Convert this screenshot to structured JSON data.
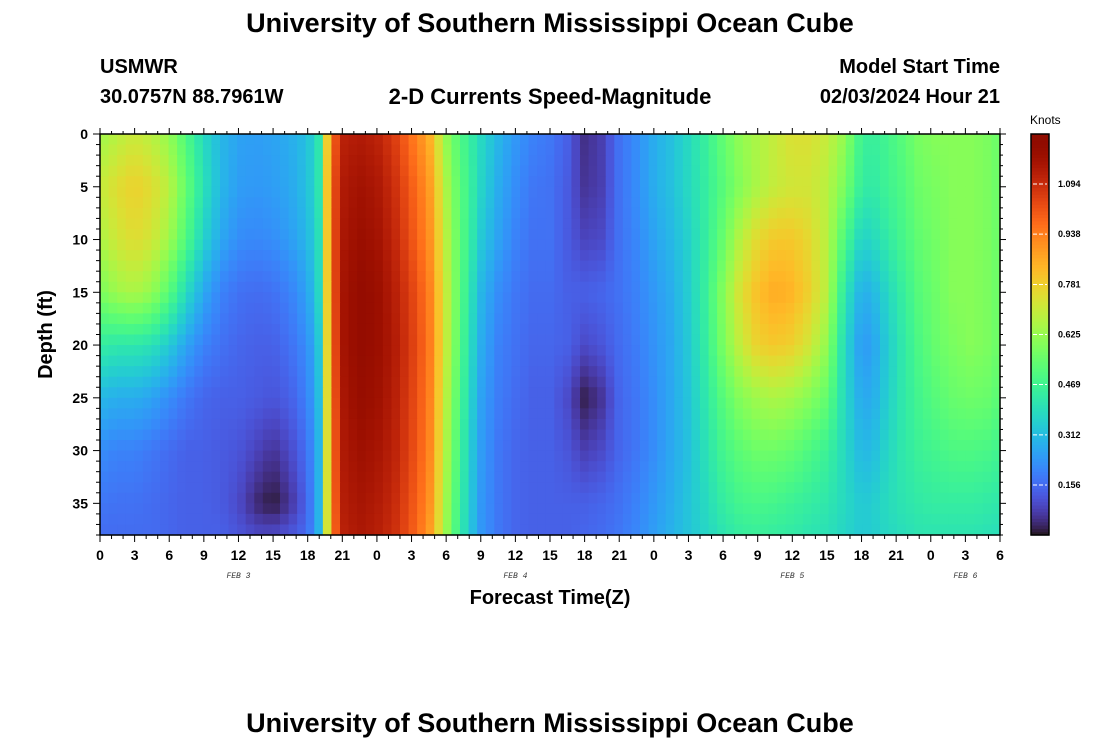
{
  "header": {
    "title": "University of Southern Mississippi Ocean Cube",
    "station": "USMWR",
    "latlon": "30.0757N  88.7961W",
    "subtitle": "2-D Currents Speed-Magnitude",
    "model_start_label": "Model Start Time",
    "model_start_value": "02/03/2024 Hour 21",
    "footer_title": "University of Southern Mississippi Ocean Cube"
  },
  "chart_data": {
    "type": "heatmap",
    "title": "2-D Currents Speed-Magnitude",
    "xlabel": "Forecast Time(Z)",
    "ylabel": "Depth (ft)",
    "x_tick_labels": [
      "0",
      "3",
      "6",
      "9",
      "12",
      "15",
      "18",
      "21",
      "0",
      "3",
      "6",
      "9",
      "12",
      "15",
      "18",
      "21",
      "0",
      "3",
      "6",
      "9",
      "12",
      "15",
      "18",
      "21",
      "0",
      "3",
      "6"
    ],
    "x_range_hours": [
      0,
      78
    ],
    "date_labels": [
      {
        "text": "FEB 3",
        "hour": 12
      },
      {
        "text": "FEB 4",
        "hour": 36
      },
      {
        "text": "FEB 5",
        "hour": 60
      },
      {
        "text": "FEB 6",
        "hour": 75
      }
    ],
    "y_tick_labels": [
      "0",
      "5",
      "10",
      "15",
      "20",
      "25",
      "30",
      "35"
    ],
    "y_range_ft": [
      0,
      38
    ],
    "colorbar": {
      "unit": "Knots",
      "range": [
        0,
        1.25
      ],
      "tick_labels": [
        "0.156",
        "0.312",
        "0.469",
        "0.625",
        "0.781",
        "0.938",
        "1.094"
      ],
      "colormap": "turbo"
    },
    "speed_knots": {
      "hours": [
        0,
        1.5,
        3,
        4.5,
        6,
        7.5,
        9,
        10.5,
        12,
        13.5,
        15,
        16.5,
        18,
        19,
        20,
        21,
        22.5,
        24,
        25.5,
        27,
        28.5,
        30,
        31,
        32,
        33,
        34.5,
        36,
        37.5,
        39,
        40.5,
        42,
        43.5,
        45,
        46.5,
        48,
        49.5,
        51,
        52.5,
        54,
        55.5,
        57,
        58.5,
        60,
        61.5,
        63,
        64.5,
        66,
        67,
        68,
        69.5,
        71,
        72.5,
        74,
        75.5,
        77,
        78
      ],
      "depths": [
        0,
        5,
        10,
        15,
        20,
        25,
        30,
        35,
        38
      ],
      "rows": [
        [
          0.64,
          0.68,
          0.71,
          0.68,
          0.62,
          0.5,
          0.38,
          0.3,
          0.26,
          0.25,
          0.26,
          0.28,
          0.32,
          0.42,
          0.95,
          1.12,
          1.14,
          1.12,
          1.06,
          0.96,
          0.86,
          0.62,
          0.52,
          0.45,
          0.38,
          0.3,
          0.24,
          0.2,
          0.18,
          0.14,
          0.05,
          0.08,
          0.17,
          0.22,
          0.28,
          0.32,
          0.38,
          0.45,
          0.54,
          0.62,
          0.66,
          0.7,
          0.74,
          0.74,
          0.7,
          0.62,
          0.46,
          0.45,
          0.47,
          0.52,
          0.58,
          0.6,
          0.6,
          0.6,
          0.58,
          0.55
        ],
        [
          0.7,
          0.75,
          0.78,
          0.75,
          0.68,
          0.54,
          0.4,
          0.3,
          0.25,
          0.24,
          0.25,
          0.27,
          0.32,
          0.42,
          0.98,
          1.14,
          1.17,
          1.15,
          1.09,
          1.0,
          0.9,
          0.66,
          0.54,
          0.46,
          0.37,
          0.28,
          0.22,
          0.18,
          0.17,
          0.13,
          0.06,
          0.08,
          0.17,
          0.22,
          0.28,
          0.32,
          0.38,
          0.44,
          0.52,
          0.6,
          0.66,
          0.7,
          0.72,
          0.72,
          0.68,
          0.58,
          0.44,
          0.43,
          0.46,
          0.5,
          0.56,
          0.58,
          0.6,
          0.6,
          0.58,
          0.55
        ],
        [
          0.66,
          0.72,
          0.75,
          0.72,
          0.64,
          0.5,
          0.36,
          0.27,
          0.22,
          0.21,
          0.22,
          0.25,
          0.3,
          0.4,
          0.98,
          1.15,
          1.19,
          1.17,
          1.11,
          1.02,
          0.92,
          0.68,
          0.55,
          0.45,
          0.34,
          0.26,
          0.2,
          0.17,
          0.17,
          0.13,
          0.09,
          0.1,
          0.17,
          0.21,
          0.26,
          0.3,
          0.36,
          0.44,
          0.55,
          0.68,
          0.76,
          0.8,
          0.8,
          0.76,
          0.68,
          0.5,
          0.36,
          0.38,
          0.42,
          0.48,
          0.54,
          0.57,
          0.6,
          0.6,
          0.58,
          0.55
        ],
        [
          0.58,
          0.64,
          0.66,
          0.62,
          0.52,
          0.38,
          0.27,
          0.2,
          0.17,
          0.16,
          0.17,
          0.2,
          0.26,
          0.38,
          0.97,
          1.16,
          1.21,
          1.19,
          1.13,
          1.05,
          0.95,
          0.7,
          0.55,
          0.42,
          0.3,
          0.22,
          0.18,
          0.16,
          0.16,
          0.14,
          0.14,
          0.15,
          0.17,
          0.2,
          0.24,
          0.28,
          0.35,
          0.45,
          0.6,
          0.74,
          0.82,
          0.86,
          0.84,
          0.78,
          0.68,
          0.42,
          0.28,
          0.3,
          0.36,
          0.44,
          0.52,
          0.56,
          0.6,
          0.6,
          0.58,
          0.55
        ],
        [
          0.44,
          0.42,
          0.42,
          0.4,
          0.34,
          0.26,
          0.2,
          0.17,
          0.15,
          0.14,
          0.14,
          0.17,
          0.22,
          0.34,
          0.96,
          1.16,
          1.21,
          1.19,
          1.14,
          1.06,
          0.96,
          0.7,
          0.54,
          0.4,
          0.28,
          0.2,
          0.17,
          0.15,
          0.15,
          0.14,
          0.1,
          0.12,
          0.16,
          0.19,
          0.23,
          0.27,
          0.34,
          0.44,
          0.58,
          0.7,
          0.78,
          0.8,
          0.78,
          0.72,
          0.62,
          0.38,
          0.24,
          0.26,
          0.33,
          0.42,
          0.5,
          0.55,
          0.58,
          0.6,
          0.58,
          0.55
        ],
        [
          0.3,
          0.28,
          0.28,
          0.26,
          0.22,
          0.18,
          0.15,
          0.14,
          0.14,
          0.13,
          0.12,
          0.14,
          0.2,
          0.32,
          0.95,
          1.15,
          1.2,
          1.18,
          1.13,
          1.05,
          0.95,
          0.68,
          0.52,
          0.38,
          0.26,
          0.19,
          0.16,
          0.14,
          0.14,
          0.1,
          0.02,
          0.06,
          0.15,
          0.18,
          0.22,
          0.27,
          0.33,
          0.42,
          0.52,
          0.6,
          0.64,
          0.66,
          0.64,
          0.6,
          0.54,
          0.38,
          0.27,
          0.28,
          0.34,
          0.42,
          0.48,
          0.52,
          0.55,
          0.56,
          0.55,
          0.52
        ],
        [
          0.22,
          0.2,
          0.2,
          0.18,
          0.16,
          0.14,
          0.14,
          0.13,
          0.12,
          0.09,
          0.06,
          0.1,
          0.17,
          0.3,
          0.94,
          1.14,
          1.18,
          1.16,
          1.12,
          1.04,
          0.94,
          0.66,
          0.5,
          0.36,
          0.25,
          0.18,
          0.15,
          0.14,
          0.14,
          0.12,
          0.08,
          0.1,
          0.15,
          0.18,
          0.22,
          0.27,
          0.32,
          0.4,
          0.48,
          0.53,
          0.56,
          0.56,
          0.54,
          0.5,
          0.46,
          0.38,
          0.3,
          0.31,
          0.36,
          0.42,
          0.46,
          0.48,
          0.5,
          0.5,
          0.49,
          0.47
        ],
        [
          0.18,
          0.17,
          0.17,
          0.16,
          0.15,
          0.14,
          0.14,
          0.13,
          0.1,
          0.04,
          0.01,
          0.06,
          0.15,
          0.3,
          0.93,
          1.13,
          1.16,
          1.14,
          1.1,
          1.02,
          0.92,
          0.64,
          0.48,
          0.35,
          0.24,
          0.18,
          0.15,
          0.14,
          0.14,
          0.14,
          0.14,
          0.15,
          0.17,
          0.2,
          0.24,
          0.28,
          0.33,
          0.38,
          0.44,
          0.48,
          0.49,
          0.48,
          0.46,
          0.44,
          0.42,
          0.38,
          0.34,
          0.35,
          0.38,
          0.41,
          0.43,
          0.44,
          0.44,
          0.44,
          0.43,
          0.42
        ],
        [
          0.16,
          0.16,
          0.16,
          0.16,
          0.15,
          0.14,
          0.14,
          0.14,
          0.12,
          0.1,
          0.1,
          0.12,
          0.16,
          0.3,
          0.92,
          1.12,
          1.15,
          1.13,
          1.09,
          1.01,
          0.9,
          0.63,
          0.47,
          0.34,
          0.24,
          0.18,
          0.15,
          0.14,
          0.14,
          0.14,
          0.15,
          0.16,
          0.18,
          0.21,
          0.25,
          0.29,
          0.33,
          0.37,
          0.41,
          0.44,
          0.45,
          0.44,
          0.43,
          0.41,
          0.4,
          0.37,
          0.34,
          0.35,
          0.37,
          0.39,
          0.41,
          0.41,
          0.41,
          0.41,
          0.4,
          0.39
        ]
      ]
    }
  }
}
